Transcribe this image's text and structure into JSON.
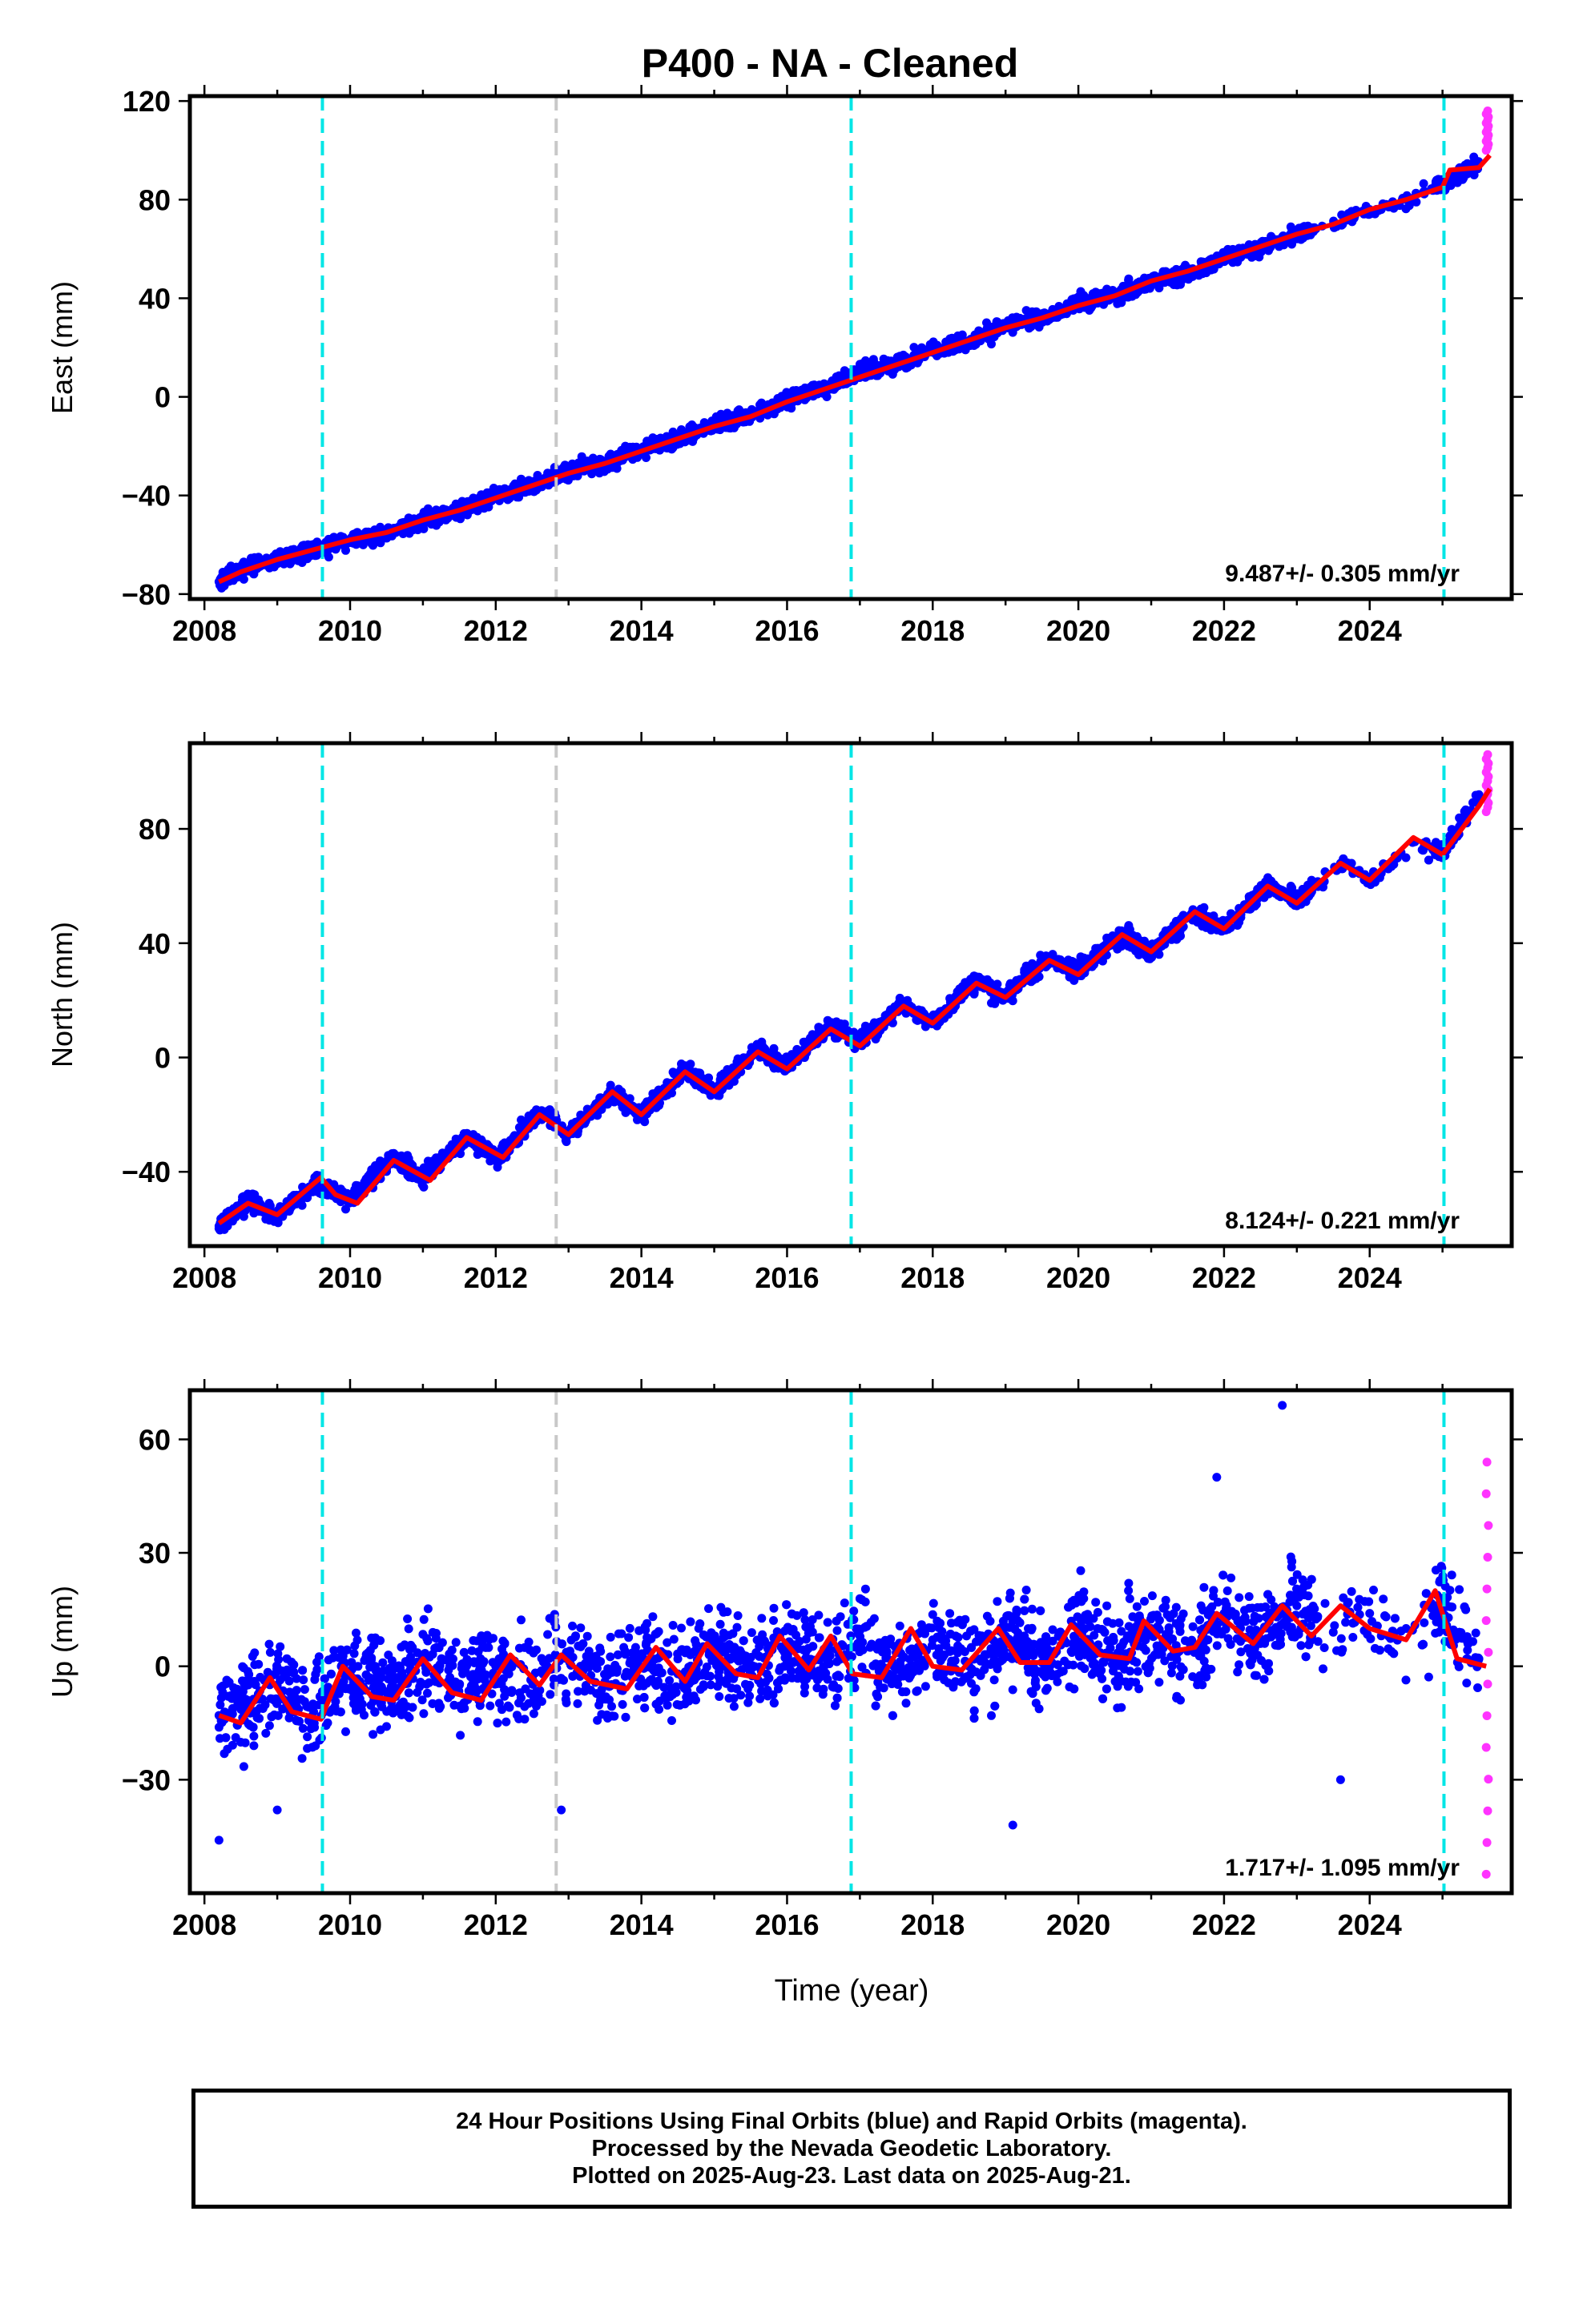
{
  "title": "P400  - NA - Cleaned",
  "x_axis_label": "Time (year)",
  "caption": [
    "24 Hour Positions Using Final Orbits (blue) and Rapid Orbits (magenta).",
    "Processed by the Nevada Geodetic Laboratory.",
    "Plotted on 2025-Aug-23. Last data on 2025-Aug-21."
  ],
  "colors": {
    "final_orbits": "#0000ff",
    "rapid_orbits": "#ff33ff",
    "model": "#ff0000",
    "equipment_change_lines": "#00e6e6",
    "other_event_line": "#c8c8c8"
  },
  "chart_data": [
    {
      "type": "scatter",
      "panel": "east",
      "ylabel": "East (mm)",
      "xlim": [
        2007.8,
        2025.95
      ],
      "ylim": [
        -82,
        122
      ],
      "xticks": [
        2008,
        2010,
        2012,
        2014,
        2016,
        2018,
        2020,
        2022,
        2024
      ],
      "yticks": [
        -80,
        -40,
        0,
        40,
        80,
        120
      ],
      "vlines_cyan": [
        2009.62,
        2016.88,
        2025.02
      ],
      "vlines_gray": [
        2012.83
      ],
      "rate_text": "9.487+/- 0.305 mm/yr",
      "series": [
        {
          "style": "final",
          "x": [
            2008.2,
            2008.5,
            2009.0,
            2009.5,
            2010.0,
            2010.5,
            2011.0,
            2011.5,
            2012.0,
            2012.5,
            2013.0,
            2013.5,
            2014.0,
            2014.5,
            2015.0,
            2015.5,
            2016.0,
            2016.5,
            2017.0,
            2017.5,
            2018.0,
            2018.5,
            2019.0,
            2019.5,
            2020.0,
            2020.5,
            2021.0,
            2021.5,
            2022.0,
            2022.5,
            2023.0,
            2023.5,
            2024.0,
            2024.5,
            2025.0,
            2025.5
          ],
          "y": [
            -75,
            -70,
            -66,
            -62,
            -58,
            -56,
            -50,
            -46,
            -40,
            -36,
            -30,
            -27,
            -21,
            -17,
            -11,
            -8,
            -1,
            3,
            10,
            13,
            19,
            22,
            29,
            32,
            38,
            41,
            47,
            50,
            57,
            60,
            66,
            70,
            76,
            80,
            86,
            95
          ]
        },
        {
          "style": "rapid",
          "x": [
            2025.6,
            2025.62,
            2025.63
          ],
          "y": [
            100,
            108,
            116
          ]
        },
        {
          "style": "model",
          "x": [
            2008.2,
            2008.5,
            2009.0,
            2009.5,
            2010.0,
            2010.5,
            2011.0,
            2011.5,
            2012.0,
            2012.5,
            2013.0,
            2013.5,
            2014.0,
            2014.5,
            2015.0,
            2015.5,
            2016.0,
            2016.5,
            2017.0,
            2017.5,
            2018.0,
            2018.5,
            2019.0,
            2019.5,
            2020.0,
            2020.5,
            2021.0,
            2021.5,
            2022.0,
            2022.5,
            2023.0,
            2023.5,
            2024.0,
            2024.5,
            2025.0,
            2025.1,
            2025.5,
            2025.65
          ],
          "y": [
            -75,
            -71,
            -66,
            -62,
            -58,
            -55,
            -50,
            -46,
            -41,
            -36,
            -31,
            -27,
            -22,
            -17,
            -12,
            -8,
            -2,
            3,
            8,
            13,
            18,
            23,
            28,
            32,
            37,
            41,
            47,
            51,
            56,
            61,
            66,
            70,
            76,
            80,
            85,
            92,
            93,
            98
          ]
        }
      ]
    },
    {
      "type": "scatter",
      "panel": "north",
      "ylabel": "North (mm)",
      "xlim": [
        2007.8,
        2025.95
      ],
      "ylim": [
        -66,
        110
      ],
      "xticks": [
        2008,
        2010,
        2012,
        2014,
        2016,
        2018,
        2020,
        2022,
        2024
      ],
      "yticks": [
        -40,
        0,
        40,
        80
      ],
      "vlines_cyan": [
        2009.62,
        2016.88,
        2025.02
      ],
      "vlines_gray": [
        2012.83
      ],
      "rate_text": "8.124+/- 0.221 mm/yr",
      "series": [
        {
          "style": "final",
          "x": [
            2008.2,
            2008.6,
            2009.0,
            2009.5,
            2010.0,
            2010.6,
            2011.0,
            2011.6,
            2012.0,
            2012.6,
            2013.0,
            2013.6,
            2014.0,
            2014.6,
            2015.0,
            2015.6,
            2016.0,
            2016.6,
            2017.0,
            2017.6,
            2018.0,
            2018.6,
            2019.0,
            2019.6,
            2020.0,
            2020.6,
            2021.0,
            2021.6,
            2022.0,
            2022.6,
            2023.0,
            2023.6,
            2024.0,
            2024.6,
            2025.0,
            2025.5
          ],
          "y": [
            -59,
            -50,
            -56,
            -44,
            -50,
            -35,
            -42,
            -28,
            -35,
            -19,
            -27,
            -12,
            -20,
            -4,
            -12,
            3,
            -3,
            11,
            5,
            19,
            12,
            27,
            21,
            35,
            30,
            43,
            37,
            51,
            45,
            60,
            55,
            68,
            62,
            76,
            72,
            92
          ]
        },
        {
          "style": "rapid",
          "x": [
            2025.6,
            2025.62,
            2025.63
          ],
          "y": [
            86,
            96,
            106
          ]
        },
        {
          "style": "model",
          "x": [
            2008.2,
            2008.6,
            2009.0,
            2009.6,
            2009.8,
            2010.1,
            2010.6,
            2011.1,
            2011.6,
            2012.1,
            2012.6,
            2013.0,
            2013.6,
            2014.0,
            2014.6,
            2015.0,
            2015.6,
            2016.0,
            2016.6,
            2017.0,
            2017.6,
            2018.0,
            2018.6,
            2019.0,
            2019.6,
            2020.0,
            2020.6,
            2021.0,
            2021.6,
            2022.0,
            2022.6,
            2023.0,
            2023.6,
            2024.0,
            2024.6,
            2025.0,
            2025.5,
            2025.65
          ],
          "y": [
            -58,
            -51,
            -55,
            -42,
            -48,
            -51,
            -36,
            -43,
            -28,
            -35,
            -20,
            -27,
            -12,
            -20,
            -5,
            -12,
            2,
            -4,
            10,
            4,
            18,
            12,
            26,
            21,
            34,
            29,
            43,
            37,
            51,
            45,
            60,
            54,
            68,
            62,
            77,
            71,
            88,
            94
          ]
        }
      ]
    },
    {
      "type": "scatter",
      "panel": "up",
      "ylabel": "Up (mm)",
      "xlim": [
        2007.8,
        2025.95
      ],
      "ylim": [
        -60,
        73
      ],
      "xticks": [
        2008,
        2010,
        2012,
        2014,
        2016,
        2018,
        2020,
        2022,
        2024
      ],
      "yticks": [
        -30,
        0,
        30,
        60
      ],
      "vlines_cyan": [
        2009.62,
        2016.88,
        2025.02
      ],
      "vlines_gray": [
        2012.83
      ],
      "rate_text": "1.717+/- 1.095 mm/yr",
      "series": [
        {
          "style": "final",
          "x": [
            2008.2,
            2008.5,
            2009.0,
            2009.5,
            2010.0,
            2010.5,
            2011.0,
            2011.5,
            2012.0,
            2012.5,
            2013.0,
            2013.5,
            2014.0,
            2014.5,
            2015.0,
            2015.5,
            2016.0,
            2016.5,
            2017.0,
            2017.5,
            2018.0,
            2018.5,
            2019.0,
            2019.5,
            2020.0,
            2020.5,
            2021.0,
            2021.5,
            2022.0,
            2022.5,
            2023.0,
            2023.5,
            2024.0,
            2024.5,
            2025.0,
            2025.5
          ],
          "y": [
            -13,
            -11,
            -5,
            -12,
            -2,
            -7,
            1,
            -5,
            0,
            -3,
            2,
            -4,
            3,
            -2,
            4,
            -1,
            5,
            0,
            6,
            -1,
            7,
            0,
            8,
            1,
            9,
            2,
            10,
            4,
            14,
            6,
            16,
            9,
            14,
            10,
            18,
            2
          ]
        },
        {
          "style": "rapid",
          "x": [
            2025.6,
            2025.61,
            2025.62,
            2025.63
          ],
          "y": [
            -55,
            -20,
            10,
            54
          ]
        },
        {
          "style": "model",
          "x": [
            2008.2,
            2008.5,
            2008.9,
            2009.2,
            2009.6,
            2009.9,
            2010.3,
            2010.6,
            2011.0,
            2011.4,
            2011.8,
            2012.2,
            2012.6,
            2012.9,
            2013.3,
            2013.8,
            2014.2,
            2014.6,
            2014.9,
            2015.3,
            2015.6,
            2015.9,
            2016.3,
            2016.6,
            2016.9,
            2017.3,
            2017.7,
            2018.0,
            2018.4,
            2018.9,
            2019.2,
            2019.6,
            2019.9,
            2020.3,
            2020.7,
            2020.9,
            2021.3,
            2021.6,
            2021.9,
            2022.4,
            2022.8,
            2023.2,
            2023.6,
            2024.0,
            2024.5,
            2024.9,
            2025.2,
            2025.6
          ],
          "y": [
            -13,
            -15,
            -3,
            -12,
            -14,
            0,
            -8,
            -9,
            2,
            -7,
            -9,
            3,
            -5,
            3,
            -4,
            -6,
            5,
            -4,
            6,
            -2,
            -3,
            8,
            -1,
            8,
            -2,
            -3,
            10,
            0,
            -1,
            10,
            1,
            1,
            11,
            3,
            2,
            12,
            4,
            5,
            14,
            6,
            16,
            8,
            16,
            10,
            7,
            20,
            2,
            0
          ]
        }
      ]
    }
  ]
}
